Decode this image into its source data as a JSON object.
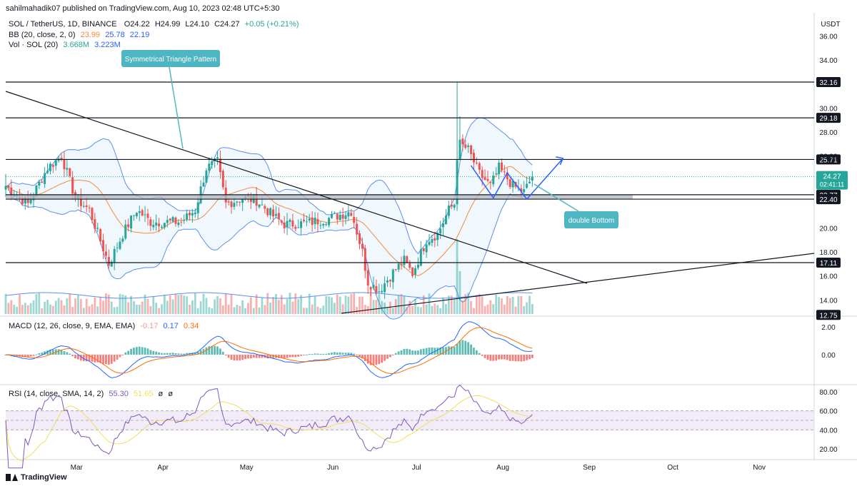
{
  "header": {
    "published": "sahilmahadik07 published on TradingView.com, Aug 10, 2023 02:48 UTC+5:30"
  },
  "legend": {
    "main": {
      "label": "SOL / TetherUS, 1D, BINANCE",
      "o": "O24.22",
      "h": "H24.99",
      "l": "L24.10",
      "c": "C24.27",
      "chg": "+0.05 (+0.21%)"
    },
    "bb": {
      "label": "BB (20, close, 2, 0)",
      "v1": "23.99",
      "v2": "25.78",
      "v3": "22.19"
    },
    "vol": {
      "label": "Vol · SOL (20)",
      "v1": "3.668M",
      "v2": "3.223M"
    },
    "macd": {
      "label": "MACD (12, 26, close, 9, EMA, EMA)",
      "v1": "-0.17",
      "v2": "0.17",
      "v3": "0.34"
    },
    "rsi": {
      "label": "RSI (14, close, SMA, 14, 2)",
      "v1": "55.30",
      "v2": "51.65",
      "v3": "ø",
      "v4": "ø"
    }
  },
  "footer": {
    "logo": "TradingView"
  },
  "colors": {
    "up": "#26a69a",
    "down": "#ef5350",
    "bb_band": "#5b8ff0",
    "bb_basis": "#f48c3b",
    "bb_fill": "#e3f2fd",
    "annotation": "#4db6c2",
    "pattern": "#2962ff",
    "macd": "#2962ff",
    "signal": "#ff6d00",
    "rsi": "#7e57c2",
    "rsi_ma": "#f2dd5a",
    "support_zone": "#b2b5be"
  },
  "chart_data": [
    {
      "type": "candlestick",
      "title": "SOL / TetherUS, 1D, BINANCE",
      "ylim": [
        12,
        37
      ],
      "y_ticks": [
        "36.00",
        "34.00",
        "30.00",
        "28.00",
        "26.00",
        "20.00",
        "18.00",
        "16.00",
        "14.00"
      ],
      "y_axis_label": "USDT",
      "x_ticks": [
        "Mar",
        "Apr",
        "May",
        "Jun",
        "Jul",
        "Aug",
        "Sep",
        "Oct",
        "Nov"
      ],
      "horizontal_levels": [
        {
          "label": "32.16",
          "value": 32.16
        },
        {
          "label": "29.18",
          "value": 29.18
        },
        {
          "label": "25.71",
          "value": 25.71
        },
        {
          "label": "22.77",
          "value": 22.77
        },
        {
          "label": "22.40",
          "value": 22.4
        },
        {
          "label": "17.11",
          "value": 17.11
        },
        {
          "label": "12.75",
          "value": 12.75
        }
      ],
      "last_price": {
        "label": "24.27",
        "value": 24.27,
        "countdown": "02:41:11"
      },
      "annotations": [
        {
          "text": "Symmetrical Triangle Pattern"
        },
        {
          "text": "double Bottom"
        }
      ],
      "close_anchors": [
        {
          "date": "2023-02-01",
          "close": 23.5
        },
        {
          "date": "2023-02-09",
          "close": 22.0
        },
        {
          "date": "2023-02-16",
          "close": 25.0
        },
        {
          "date": "2023-02-21",
          "close": 26.0
        },
        {
          "date": "2023-02-26",
          "close": 22.5
        },
        {
          "date": "2023-03-03",
          "close": 21.5
        },
        {
          "date": "2023-03-10",
          "close": 17.0
        },
        {
          "date": "2023-03-15",
          "close": 19.5
        },
        {
          "date": "2023-03-20",
          "close": 21.5
        },
        {
          "date": "2023-03-25",
          "close": 20.5
        },
        {
          "date": "2023-03-30",
          "close": 20.5
        },
        {
          "date": "2023-04-05",
          "close": 20.5
        },
        {
          "date": "2023-04-10",
          "close": 21.5
        },
        {
          "date": "2023-04-14",
          "close": 25.0
        },
        {
          "date": "2023-04-18",
          "close": 25.5
        },
        {
          "date": "2023-04-21",
          "close": 22.0
        },
        {
          "date": "2023-04-27",
          "close": 22.5
        },
        {
          "date": "2023-05-02",
          "close": 22.3
        },
        {
          "date": "2023-05-08",
          "close": 21.0
        },
        {
          "date": "2023-05-12",
          "close": 20.3
        },
        {
          "date": "2023-05-20",
          "close": 20.4
        },
        {
          "date": "2023-05-28",
          "close": 20.8
        },
        {
          "date": "2023-06-05",
          "close": 21.4
        },
        {
          "date": "2023-06-09",
          "close": 18.0
        },
        {
          "date": "2023-06-11",
          "close": 15.5
        },
        {
          "date": "2023-06-15",
          "close": 14.8
        },
        {
          "date": "2023-06-20",
          "close": 16.3
        },
        {
          "date": "2023-06-24",
          "close": 17.3
        },
        {
          "date": "2023-06-27",
          "close": 16.2
        },
        {
          "date": "2023-07-02",
          "close": 19.0
        },
        {
          "date": "2023-07-06",
          "close": 19.5
        },
        {
          "date": "2023-07-10",
          "close": 21.5
        },
        {
          "date": "2023-07-12",
          "close": 22.0
        },
        {
          "date": "2023-07-13",
          "close": 26.0
        },
        {
          "date": "2023-07-14",
          "close": 27.0
        },
        {
          "date": "2023-07-17",
          "close": 26.5
        },
        {
          "date": "2023-07-21",
          "close": 24.5
        },
        {
          "date": "2023-07-25",
          "close": 23.5
        },
        {
          "date": "2023-07-28",
          "close": 25.0
        },
        {
          "date": "2023-08-02",
          "close": 23.5
        },
        {
          "date": "2023-08-06",
          "close": 23.0
        },
        {
          "date": "2023-08-09",
          "close": 24.27
        }
      ]
    },
    {
      "type": "line",
      "title": "MACD (12, 26, close, 9, EMA, EMA)",
      "y_ticks": [
        "2.00",
        "0.00"
      ],
      "ylim": [
        -1.5,
        2.5
      ]
    },
    {
      "type": "line",
      "title": "RSI (14, close, SMA, 14, 2)",
      "y_ticks": [
        "80.00",
        "60.00",
        "40.00",
        "20.00"
      ],
      "ylim": [
        15,
        85
      ],
      "band": [
        40,
        60
      ]
    }
  ]
}
